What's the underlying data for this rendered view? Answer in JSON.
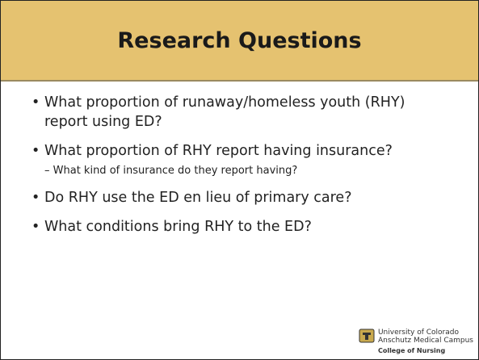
{
  "header": {
    "title": "Research Questions"
  },
  "bullets": [
    {
      "text": "What proportion of runaway/homeless youth (RHY) report using ED?"
    },
    {
      "text": "What proportion of RHY report having insurance?",
      "sub": [
        "What kind of insurance do they report having?"
      ]
    },
    {
      "text": "Do RHY use the ED en lieu of primary care?"
    },
    {
      "text": "What conditions bring RHY to the ED?"
    }
  ],
  "logo": {
    "line1": "University of Colorado",
    "line2": "Anschutz Medical Campus",
    "line3": "College of Nursing"
  }
}
